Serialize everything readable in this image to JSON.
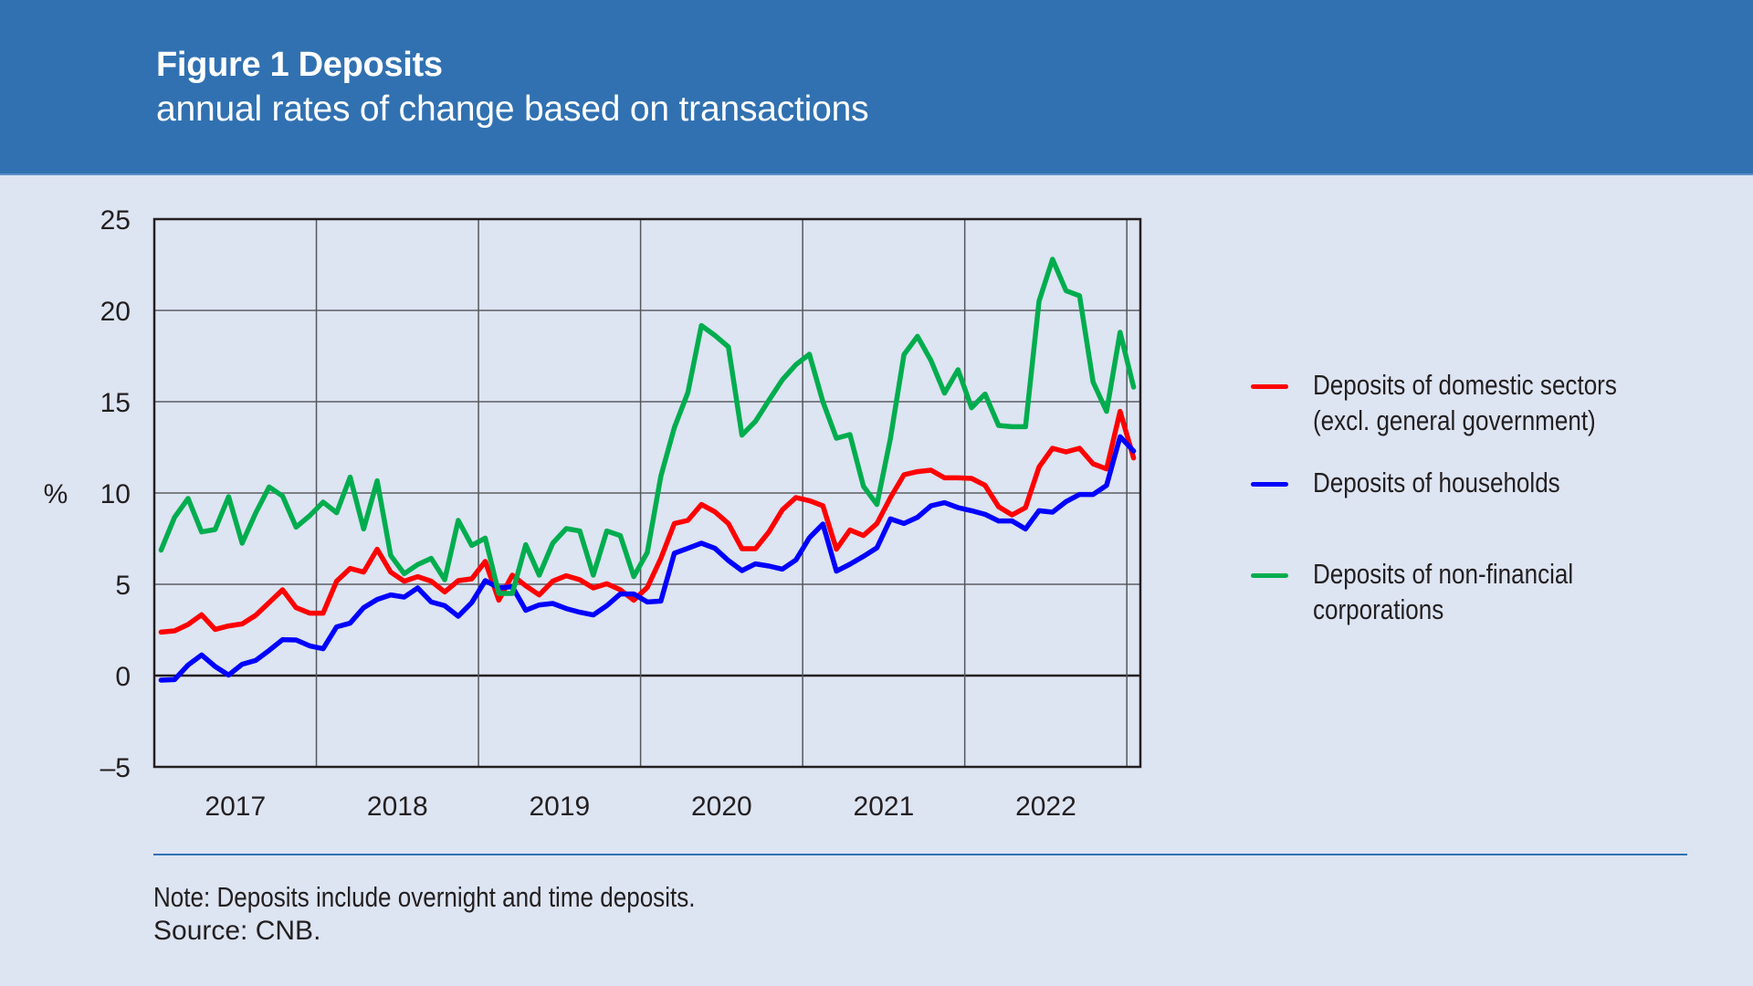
{
  "header": {
    "title": "Figure 1 Deposits",
    "subtitle": "annual rates of change based on transactions"
  },
  "colors": {
    "header_bg": "#3171b1",
    "page_bg": "#dde4f2",
    "domestic": "#ff0000",
    "households": "#0000ff",
    "nonfinancial": "#00ad4e"
  },
  "chart_data": {
    "type": "line",
    "title": "Figure 1 Deposits",
    "subtitle": "annual rates of change based on transactions",
    "xlabel": "",
    "ylabel": "%",
    "ylim": [
      -5,
      25
    ],
    "yticks": [
      25,
      20,
      15,
      10,
      5,
      0,
      -5
    ],
    "ytick_labels": [
      "25",
      "20",
      "15",
      "10",
      "5",
      "0",
      "–5"
    ],
    "xticks": [
      "2017",
      "2018",
      "2019",
      "2020",
      "2021",
      "2022"
    ],
    "x_start": "Jan 2017",
    "x_end": "Jan 2023",
    "frequency": "monthly",
    "grid": true,
    "legend_position": "right",
    "series": [
      {
        "name": "Deposits of domestic sectors (excl. general government)",
        "legend_lines": [
          "Deposits of domestic sectors",
          "(excl. general government)"
        ],
        "color": "#ff0000",
        "values": [
          2.38,
          2.45,
          2.8,
          3.33,
          2.53,
          2.72,
          2.83,
          3.3,
          4.0,
          4.7,
          3.72,
          3.42,
          3.42,
          5.17,
          5.87,
          5.67,
          6.92,
          5.67,
          5.17,
          5.42,
          5.17,
          4.58,
          5.2,
          5.3,
          6.25,
          4.13,
          5.5,
          4.92,
          4.42,
          5.17,
          5.47,
          5.25,
          4.8,
          5.03,
          4.7,
          4.13,
          4.83,
          6.42,
          8.33,
          8.5,
          9.37,
          8.97,
          8.33,
          6.95,
          6.95,
          7.87,
          9.08,
          9.75,
          9.58,
          9.3,
          6.92,
          7.97,
          7.67,
          8.33,
          9.75,
          11.0,
          11.17,
          11.25,
          10.83,
          10.83,
          10.8,
          10.42,
          9.25,
          8.8,
          9.2,
          11.42,
          12.45,
          12.25,
          12.45,
          11.6,
          11.32,
          14.47,
          11.92
        ]
      },
      {
        "name": "Deposits of households",
        "legend_lines": [
          "Deposits of households"
        ],
        "color": "#0000ff",
        "values": [
          -0.25,
          -0.22,
          0.58,
          1.13,
          0.5,
          0.03,
          0.62,
          0.83,
          1.38,
          1.97,
          1.95,
          1.63,
          1.47,
          2.67,
          2.87,
          3.72,
          4.17,
          4.42,
          4.3,
          4.8,
          4.03,
          3.83,
          3.25,
          4.0,
          5.2,
          4.8,
          4.87,
          3.58,
          3.87,
          3.95,
          3.67,
          3.47,
          3.32,
          3.83,
          4.47,
          4.47,
          4.03,
          4.08,
          6.7,
          6.97,
          7.25,
          6.97,
          6.3,
          5.75,
          6.12,
          6.0,
          5.83,
          6.33,
          7.55,
          8.3,
          5.72,
          6.1,
          6.53,
          7.0,
          8.58,
          8.33,
          8.67,
          9.3,
          9.47,
          9.2,
          9.03,
          8.83,
          8.47,
          8.47,
          8.03,
          9.03,
          8.95,
          9.53,
          9.92,
          9.92,
          10.42,
          13.08,
          12.3
        ]
      },
      {
        "name": "Deposits of non-financial corporations",
        "legend_lines": [
          "Deposits of non-financial",
          "corporations"
        ],
        "color": "#00ad4e",
        "values": [
          6.87,
          8.67,
          9.7,
          7.87,
          8.0,
          9.8,
          7.25,
          8.9,
          10.33,
          9.83,
          8.13,
          8.75,
          9.5,
          8.92,
          10.87,
          8.03,
          10.67,
          6.58,
          5.58,
          6.08,
          6.42,
          5.25,
          8.5,
          7.13,
          7.53,
          4.5,
          4.5,
          7.17,
          5.5,
          7.25,
          8.05,
          7.92,
          5.5,
          7.92,
          7.67,
          5.42,
          6.75,
          10.92,
          13.58,
          15.5,
          19.17,
          18.63,
          18.0,
          13.17,
          13.92,
          15.08,
          16.2,
          17.03,
          17.6,
          15.0,
          13.0,
          13.2,
          10.37,
          9.37,
          13.0,
          17.58,
          18.58,
          17.25,
          15.47,
          16.75,
          14.67,
          15.42,
          13.7,
          13.63,
          13.63,
          20.5,
          22.8,
          21.08,
          20.8,
          16.08,
          14.47,
          18.8,
          15.8
        ]
      }
    ]
  },
  "footer": {
    "note": "Note: Deposits include overnight and time deposits.",
    "source": "Source: CNB."
  }
}
